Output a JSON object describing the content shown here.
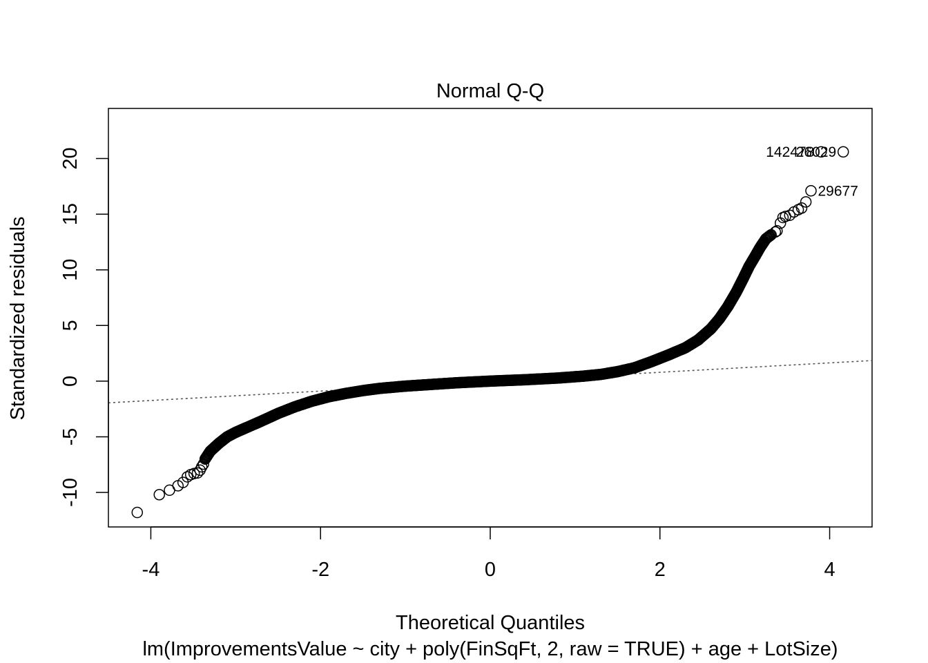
{
  "chart_data": {
    "type": "scatter",
    "title": "Normal Q-Q",
    "xlabel": "Theoretical Quantiles",
    "ylabel": "Standardized residuals",
    "subtitle": "lm(ImprovementsValue ~ city + poly(FinSqFt, 2, raw = TRUE) + age + LotSize)",
    "xlim": [
      -4.5,
      4.5
    ],
    "ylim": [
      -13.1,
      24.5
    ],
    "x_ticks": [
      -4,
      -2,
      0,
      2,
      4
    ],
    "y_ticks": [
      -10,
      -5,
      0,
      5,
      10,
      15,
      20
    ],
    "grid": false,
    "legend": "none",
    "reference_line": {
      "style": "dotted",
      "color": "#555555",
      "x": [
        -4.5,
        4.5
      ],
      "y": [
        -1.95,
        1.85
      ]
    },
    "point_style": {
      "shape": "open-circle",
      "color": "#000000"
    },
    "curve_points": [
      [
        -3.36,
        -7.0
      ],
      [
        -3.3,
        -6.3
      ],
      [
        -3.2,
        -5.6
      ],
      [
        -3.1,
        -5.0
      ],
      [
        -3.0,
        -4.6
      ],
      [
        -2.85,
        -4.1
      ],
      [
        -2.7,
        -3.6
      ],
      [
        -2.5,
        -2.9
      ],
      [
        -2.3,
        -2.3
      ],
      [
        -2.1,
        -1.8
      ],
      [
        -1.9,
        -1.4
      ],
      [
        -1.7,
        -1.1
      ],
      [
        -1.5,
        -0.85
      ],
      [
        -1.3,
        -0.65
      ],
      [
        -1.0,
        -0.45
      ],
      [
        -0.7,
        -0.3
      ],
      [
        -0.4,
        -0.15
      ],
      [
        0.0,
        0.0
      ],
      [
        0.4,
        0.12
      ],
      [
        0.8,
        0.28
      ],
      [
        1.1,
        0.45
      ],
      [
        1.3,
        0.6
      ],
      [
        1.5,
        0.85
      ],
      [
        1.7,
        1.2
      ],
      [
        1.9,
        1.75
      ],
      [
        2.1,
        2.35
      ],
      [
        2.3,
        3.0
      ],
      [
        2.45,
        3.7
      ],
      [
        2.6,
        4.7
      ],
      [
        2.7,
        5.6
      ],
      [
        2.8,
        6.7
      ],
      [
        2.9,
        8.0
      ],
      [
        2.98,
        9.2
      ],
      [
        3.05,
        10.3
      ],
      [
        3.12,
        11.2
      ],
      [
        3.18,
        12.0
      ],
      [
        3.25,
        12.8
      ],
      [
        3.32,
        13.2
      ]
    ],
    "tail_points": [
      [
        -4.16,
        -11.8
      ],
      [
        -3.9,
        -10.2
      ],
      [
        -3.78,
        -9.8
      ],
      [
        -3.68,
        -9.4
      ],
      [
        -3.62,
        -9.1
      ],
      [
        -3.57,
        -8.6
      ],
      [
        -3.53,
        -8.4
      ],
      [
        -3.49,
        -8.3
      ],
      [
        -3.45,
        -8.25
      ],
      [
        -3.42,
        -8.0
      ],
      [
        -3.4,
        -7.7
      ],
      [
        -3.38,
        -7.45
      ],
      [
        3.36,
        13.4
      ],
      [
        3.38,
        13.5
      ],
      [
        3.42,
        14.2
      ],
      [
        3.45,
        14.7
      ],
      [
        3.48,
        14.8
      ],
      [
        3.53,
        14.9
      ],
      [
        3.58,
        15.2
      ],
      [
        3.63,
        15.4
      ],
      [
        3.67,
        15.55
      ],
      [
        3.72,
        16.1
      ],
      [
        3.78,
        17.1
      ],
      [
        3.9,
        20.6
      ],
      [
        4.16,
        20.6
      ]
    ],
    "labeled_points": [
      {
        "label": "142478",
        "x": 3.9,
        "y": 20.6,
        "side": "left"
      },
      {
        "label": "26029",
        "x": 4.16,
        "y": 20.6,
        "side": "left"
      },
      {
        "label": "29677",
        "x": 3.78,
        "y": 17.1,
        "side": "right"
      }
    ]
  }
}
